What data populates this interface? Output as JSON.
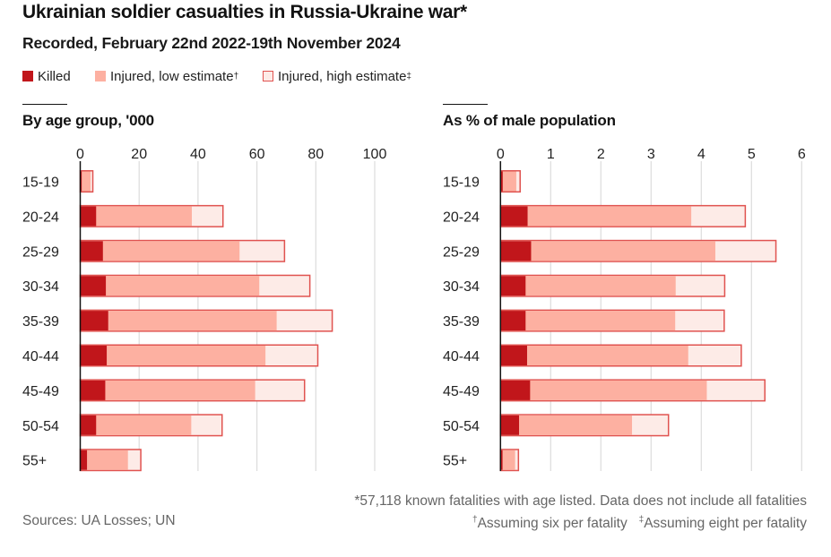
{
  "header": {
    "title": "Ukrainian soldier casualties in Russia-Ukraine war*",
    "subtitle": "Recorded, February 22nd 2022-19th November 2024"
  },
  "legend": [
    {
      "key": "killed",
      "label": "Killed",
      "mark": ""
    },
    {
      "key": "low",
      "label": "Injured, low estimate",
      "mark": "†"
    },
    {
      "key": "high",
      "label": "Injured, high estimate",
      "mark": "‡"
    }
  ],
  "colors": {
    "killed": "#c1161b",
    "low": "#fdb0a1",
    "high": "#fdebe7",
    "outline": "#e05350",
    "grid": "#dcdcdc",
    "axis": "#121212",
    "text": "#121212",
    "muted": "#666666"
  },
  "footer": {
    "note1": "*57,118 known fatalities with age listed. Data does not include all fatalities",
    "note2a_mark": "†",
    "note2a": "Assuming six per fatality",
    "note2b_mark": "‡",
    "note2b": "Assuming eight per fatality",
    "sources": "Sources: UA Losses; UN"
  },
  "chart_data": [
    {
      "type": "bar",
      "orientation": "horizontal",
      "stacked": "cumulative-overlay",
      "title": "By age group, '000",
      "categories": [
        "15-19",
        "20-24",
        "25-29",
        "30-34",
        "35-39",
        "40-44",
        "45-49",
        "50-54",
        "55+"
      ],
      "xlim": [
        0,
        100
      ],
      "xticks": [
        0,
        20,
        40,
        60,
        80,
        100
      ],
      "grid": true,
      "series": [
        {
          "name": "Killed",
          "values": [
            0.5,
            5.4,
            7.7,
            8.7,
            9.5,
            9.0,
            8.5,
            5.4,
            2.3
          ]
        },
        {
          "name": "Injured, low estimate",
          "note": "Assuming six per fatality",
          "values": [
            3.0,
            32.5,
            46.4,
            52.1,
            57.2,
            53.9,
            50.9,
            32.3,
            13.9
          ]
        },
        {
          "name": "Injured, high estimate",
          "note": "Assuming eight per fatality",
          "values": [
            4.0,
            43.3,
            61.9,
            69.5,
            76.3,
            71.9,
            67.9,
            43.0,
            18.5
          ]
        }
      ],
      "totals_high": [
        4.5,
        48.7,
        69.7,
        78.2,
        85.9,
        80.9,
        76.4,
        48.4,
        20.8
      ]
    },
    {
      "type": "bar",
      "orientation": "horizontal",
      "stacked": "cumulative-overlay",
      "title": "As % of male population",
      "categories": [
        "15-19",
        "20-24",
        "25-29",
        "30-34",
        "35-39",
        "40-44",
        "45-49",
        "50-54",
        "55+"
      ],
      "xlim": [
        0,
        6
      ],
      "xticks": [
        0,
        1,
        2,
        3,
        4,
        5,
        6
      ],
      "grid": true,
      "series": [
        {
          "name": "Killed",
          "values": [
            0.045,
            0.54,
            0.61,
            0.5,
            0.5,
            0.53,
            0.59,
            0.37,
            0.041
          ]
        },
        {
          "name": "Injured, low estimate",
          "note": "Assuming six per fatality",
          "values": [
            0.27,
            3.26,
            3.67,
            2.99,
            2.98,
            3.21,
            3.52,
            2.25,
            0.25
          ]
        },
        {
          "name": "Injured, high estimate",
          "note": "Assuming eight per fatality",
          "values": [
            0.36,
            4.35,
            4.89,
            3.98,
            3.97,
            4.28,
            4.69,
            2.99,
            0.33
          ]
        }
      ],
      "totals_high": [
        0.41,
        4.9,
        5.5,
        4.48,
        4.47,
        4.81,
        5.28,
        3.37,
        0.37
      ]
    }
  ]
}
